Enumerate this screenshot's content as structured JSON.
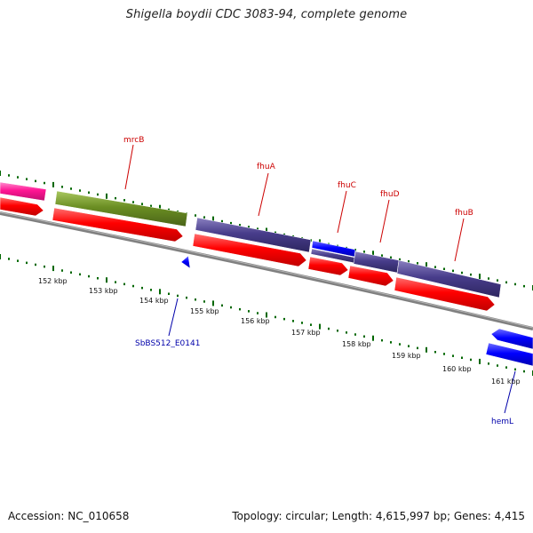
{
  "title": "Shigella boydii CDC 3083-94, complete genome",
  "footer": {
    "accession": "Accession: NC_010658",
    "summary": "Topology: circular; Length: 4,615,997 bp; Genes: 4,415"
  },
  "colors": {
    "gene_label_red": "#cc0000",
    "gene_label_blue": "#0000aa",
    "tick_green": "#006600",
    "backbone_gray": "#808080",
    "cds_red": "#ff0000",
    "pink": "#ff1493",
    "olive": "#6b8e23",
    "purple": "#483d8b",
    "blue": "#0000ff"
  },
  "gene_labels": {
    "mrcB": "mrcB",
    "fhuA": "fhuA",
    "fhuC": "fhuC",
    "fhuD": "fhuD",
    "fhuB": "fhuB",
    "sbbs": "SbBS512_E0141",
    "hemL": "hemL"
  },
  "kbp_labels": [
    "152 kbp",
    "153 kbp",
    "154 kbp",
    "155 kbp",
    "156 kbp",
    "157 kbp",
    "158 kbp",
    "159 kbp",
    "160 kbp",
    "161 kbp"
  ]
}
